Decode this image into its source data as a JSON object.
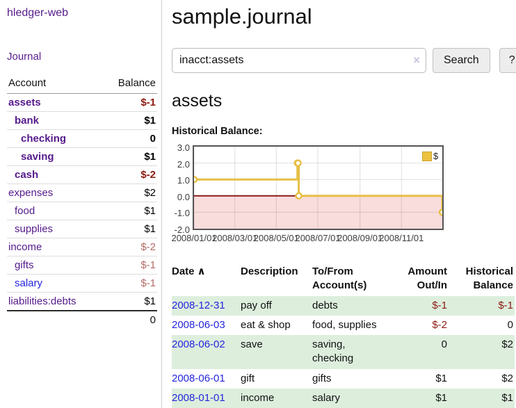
{
  "app": {
    "brand": "hledger-web",
    "nav_journal": "Journal"
  },
  "sidebar": {
    "header": {
      "account": "Account",
      "balance": "Balance"
    },
    "accounts": [
      {
        "name": "assets",
        "balance": "$-1",
        "level": 1,
        "bold": true,
        "balance_style": "neg-strong",
        "link_style": "purple"
      },
      {
        "name": "bank",
        "balance": "$1",
        "level": 2,
        "bold": true,
        "balance_style": "normal",
        "link_style": "purple"
      },
      {
        "name": "checking",
        "balance": "0",
        "level": 3,
        "bold": true,
        "balance_style": "normal",
        "link_style": "purple"
      },
      {
        "name": "saving",
        "balance": "$1",
        "level": 3,
        "bold": true,
        "balance_style": "normal",
        "link_style": "purple"
      },
      {
        "name": "cash",
        "balance": "$-2",
        "level": 2,
        "bold": true,
        "balance_style": "neg-strong",
        "link_style": "purple"
      },
      {
        "name": "expenses",
        "balance": "$2",
        "level": 1,
        "bold": false,
        "balance_style": "normal",
        "link_style": "purple"
      },
      {
        "name": "food",
        "balance": "$1",
        "level": 2,
        "bold": false,
        "balance_style": "normal",
        "link_style": "purple"
      },
      {
        "name": "supplies",
        "balance": "$1",
        "level": 2,
        "bold": false,
        "balance_style": "normal",
        "link_style": "purple"
      },
      {
        "name": "income",
        "balance": "$-2",
        "level": 1,
        "bold": false,
        "balance_style": "neg-muted",
        "link_style": "purple"
      },
      {
        "name": "gifts",
        "balance": "$-1",
        "level": 2,
        "bold": false,
        "balance_style": "neg-muted",
        "link_style": "purple"
      },
      {
        "name": "salary",
        "balance": "$-1",
        "level": 2,
        "bold": false,
        "balance_style": "neg-muted",
        "link_style": "blue"
      },
      {
        "name": "liabilities:debts",
        "balance": "$1",
        "level": 1,
        "bold": false,
        "balance_style": "normal",
        "link_style": "purple"
      }
    ],
    "total": "0"
  },
  "header": {
    "title": "sample.journal"
  },
  "search": {
    "value": "inacct:assets",
    "clear_icon": "×",
    "button_label": "Search",
    "help_label": "?"
  },
  "account_page": {
    "title": "assets",
    "chart_label": "Historical Balance:"
  },
  "chart_data": {
    "type": "line",
    "step": true,
    "title": "Historical Balance",
    "series": [
      {
        "name": "$",
        "color": "#e6bf45",
        "points": [
          [
            "2008-01-01",
            1
          ],
          [
            "2008-06-01",
            2
          ],
          [
            "2008-06-02",
            2
          ],
          [
            "2008-06-03",
            0
          ],
          [
            "2008-12-31",
            -1
          ]
        ]
      }
    ],
    "xlim": [
      "2008-01-01",
      "2008-12-31"
    ],
    "ylim": [
      -2,
      3
    ],
    "yticks": [
      3.0,
      2.0,
      1.0,
      0.0,
      -1.0,
      -2.0
    ],
    "xticks": [
      {
        "date": "2008-01-01",
        "label": "2008/01/01"
      },
      {
        "date": "2008-03-01",
        "label": "2008/03/01"
      },
      {
        "date": "2008-05-01",
        "label": "2008/05/01"
      },
      {
        "date": "2008-07-01",
        "label": "2008/07/01"
      },
      {
        "date": "2008-09-01",
        "label": "2008/09/01"
      },
      {
        "date": "2008-11-01",
        "label": "2008/11/01"
      }
    ],
    "grid": true,
    "legend_position": "top-right",
    "negative_region_color": "#f9dcdc",
    "zero_line_color": "#8b1a1a"
  },
  "register": {
    "sort_icon": "∧",
    "columns": [
      {
        "label": "Date",
        "align": "left"
      },
      {
        "label": "Description",
        "align": "left"
      },
      {
        "label": "To/From Account(s)",
        "align": "left"
      },
      {
        "label": "Amount Out/In",
        "align": "right"
      },
      {
        "label": "Historical Balance",
        "align": "right"
      }
    ],
    "rows": [
      {
        "date": "2008-12-31",
        "description": "pay off",
        "accounts": "debts",
        "amount": "$-1",
        "balance": "$-1"
      },
      {
        "date": "2008-06-03",
        "description": "eat & shop",
        "accounts": "food, supplies",
        "amount": "$-2",
        "balance": "0"
      },
      {
        "date": "2008-06-02",
        "description": "save",
        "accounts": "saving, checking",
        "amount": "0",
        "balance": "$2"
      },
      {
        "date": "2008-06-01",
        "description": "gift",
        "accounts": "gifts",
        "amount": "$1",
        "balance": "$2"
      },
      {
        "date": "2008-01-01",
        "description": "income",
        "accounts": "salary",
        "amount": "$1",
        "balance": "$1"
      }
    ]
  }
}
